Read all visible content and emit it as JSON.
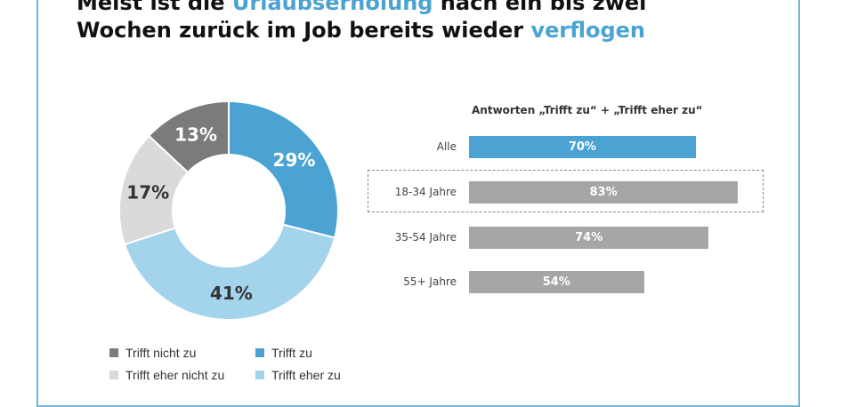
{
  "title": {
    "line1_pre": "Meist ist die ",
    "line1_hl": "Urlaubserholung",
    "line1_post": " nach ein bis zwei",
    "line2_pre": "Wochen zurück im Job bereits wieder ",
    "line2_hl": "verflogen"
  },
  "colors": {
    "trifft_zu": "#4aa3d3",
    "trifft_eher_zu": "#a4d3ec",
    "trifft_eher_nicht_zu": "#dadada",
    "trifft_nicht_zu": "#7b7b7b",
    "bar_main": "#4aa3d3",
    "bar_other": "#a6a6a6"
  },
  "chart_data": [
    {
      "type": "pie",
      "donut": true,
      "slices": [
        {
          "name": "Trifft zu",
          "value": 29,
          "label": "29%",
          "color": "#4aa3d3"
        },
        {
          "name": "Trifft eher zu",
          "value": 41,
          "label": "41%",
          "color": "#a4d3ec"
        },
        {
          "name": "Trifft eher nicht zu",
          "value": 17,
          "label": "17%",
          "color": "#dadada"
        },
        {
          "name": "Trifft nicht zu",
          "value": 13,
          "label": "13%",
          "color": "#7b7b7b"
        }
      ],
      "legend": [
        {
          "name": "Trifft nicht zu",
          "color": "#7b7b7b"
        },
        {
          "name": "Trifft zu",
          "color": "#4aa3d3"
        },
        {
          "name": "Trifft eher nicht zu",
          "color": "#dadada"
        },
        {
          "name": "Trifft eher zu",
          "color": "#a4d3ec"
        }
      ],
      "legend_placement": "bottom"
    },
    {
      "type": "bar",
      "orientation": "horizontal",
      "title": "Antworten „Trifft zu“ + „Trifft eher zu“",
      "categories": [
        "Alle",
        "18-34 Jahre",
        "35-54 Jahre",
        "55+ Jahre"
      ],
      "values": [
        70,
        83,
        74,
        54
      ],
      "labels": [
        "70%",
        "83%",
        "74%",
        "54%"
      ],
      "highlighted_category": "18-34 Jahre",
      "xlim": [
        0,
        100
      ]
    }
  ]
}
